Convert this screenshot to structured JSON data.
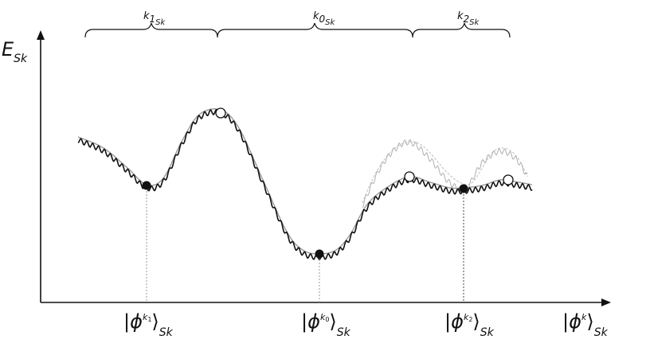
{
  "axes": {
    "y_label": {
      "main": "E",
      "sub": "Sk"
    },
    "x_label": {
      "prefix": "|",
      "phi": "ϕ",
      "sup": "k",
      "suffix": "⟩",
      "sub": "Sk"
    }
  },
  "braces": [
    {
      "main": "k",
      "index": "1",
      "sub": "Sk"
    },
    {
      "main": "k",
      "index": "0",
      "sub": "Sk"
    },
    {
      "main": "k",
      "index": "2",
      "sub": "Sk"
    }
  ],
  "kets": [
    {
      "phi": "ϕ",
      "sup": "k",
      "sup_index": "1",
      "sub": "Sk"
    },
    {
      "phi": "ϕ",
      "sup": "k",
      "sup_index": "0",
      "sub": "Sk"
    },
    {
      "phi": "ϕ",
      "sup": "k",
      "sup_index": "2",
      "sub": "Sk"
    }
  ],
  "colors": {
    "axis": "#111111",
    "smooth_curve": "#9a9a9a",
    "noisy_curve": "#111111",
    "ghost_curve": "#b8b8b8",
    "minimum_marker": "#111111",
    "maximum_marker": "#ffffff"
  }
}
